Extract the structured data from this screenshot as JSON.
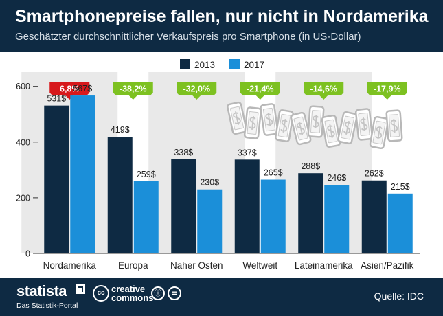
{
  "header": {
    "title": "Smartphonepreise fallen, nur nicht in Nordamerika",
    "subtitle": "Geschätzter durchschnittlicher Verkaufspreis pro Smartphone (in US-Dollar)"
  },
  "colors": {
    "header_bg": "#0e2a43",
    "series_2013": "#0e2a43",
    "series_2017": "#1b8fd9",
    "badge_up": "#d7191c",
    "badge_down": "#7dc121",
    "band": "#e9e9e9"
  },
  "chart_data": {
    "type": "bar",
    "categories": [
      "Nordamerika",
      "Europa",
      "Naher Osten",
      "Weltweit",
      "Lateinamerika",
      "Asien/Pazifik"
    ],
    "series": [
      {
        "name": "2013",
        "values": [
          531,
          419,
          338,
          337,
          288,
          262
        ],
        "labels": [
          "531$",
          "419$",
          "338$",
          "337$",
          "288$",
          "262$"
        ]
      },
      {
        "name": "2017",
        "values": [
          567,
          259,
          230,
          265,
          246,
          215
        ],
        "labels": [
          "567$",
          "259$",
          "230$",
          "265$",
          "246$",
          "215$"
        ]
      }
    ],
    "changes": [
      "6,8%",
      "-38,2%",
      "-32,0%",
      "-21,4%",
      "-14,6%",
      "-17,9%"
    ],
    "yticks": [
      0,
      200,
      400,
      600
    ],
    "ytick_labels": [
      "0",
      "200",
      "400",
      "600"
    ],
    "ylim": [
      0,
      720
    ],
    "legend_position": "top-center",
    "grid": false,
    "illustration": "smartphones-with-dollar-sign-icons"
  },
  "footer": {
    "brand": "statista",
    "brand_sub": "Das Statistik-Portal",
    "cc_line1": "creative",
    "cc_line2": "commons",
    "cc_symbol": "cc",
    "cc_by_symbol": "ⓘ",
    "cc_nd_symbol": "=",
    "source": "Quelle: IDC"
  }
}
